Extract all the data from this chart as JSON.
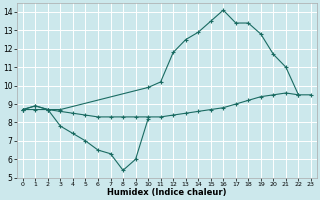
{
  "xlabel": "Humidex (Indice chaleur)",
  "xlim": [
    -0.5,
    23.5
  ],
  "ylim": [
    5,
    14.5
  ],
  "yticks": [
    5,
    6,
    7,
    8,
    9,
    10,
    11,
    12,
    13,
    14
  ],
  "xticks": [
    0,
    1,
    2,
    3,
    4,
    5,
    6,
    7,
    8,
    9,
    10,
    11,
    12,
    13,
    14,
    15,
    16,
    17,
    18,
    19,
    20,
    21,
    22,
    23
  ],
  "bg_color": "#cce8ec",
  "grid_color": "#ffffff",
  "line_color": "#1a6b62",
  "curve1": {
    "x": [
      0,
      1,
      2,
      3,
      4,
      5,
      6,
      7,
      8,
      9,
      10
    ],
    "y": [
      8.7,
      8.9,
      8.7,
      7.8,
      7.4,
      7.0,
      6.5,
      6.3,
      5.4,
      6.0,
      8.2
    ]
  },
  "curve2": {
    "x": [
      0,
      1,
      2,
      3,
      10,
      11,
      12,
      13,
      14,
      15,
      16,
      17,
      18,
      19,
      20,
      21,
      22
    ],
    "y": [
      8.7,
      8.9,
      8.7,
      8.7,
      9.9,
      10.2,
      11.8,
      12.5,
      12.9,
      13.5,
      14.1,
      13.4,
      13.4,
      12.8,
      11.7,
      11.0,
      9.5
    ]
  },
  "curve3": {
    "x": [
      0,
      1,
      2,
      3,
      4,
      5,
      6,
      7,
      8,
      9,
      10,
      11,
      12,
      13,
      14,
      15,
      16,
      17,
      18,
      19,
      20,
      21,
      22,
      23
    ],
    "y": [
      8.7,
      8.7,
      8.7,
      8.6,
      8.5,
      8.4,
      8.3,
      8.3,
      8.3,
      8.3,
      8.3,
      8.3,
      8.4,
      8.5,
      8.6,
      8.7,
      8.8,
      9.0,
      9.2,
      9.4,
      9.5,
      9.6,
      9.5,
      9.5
    ]
  }
}
